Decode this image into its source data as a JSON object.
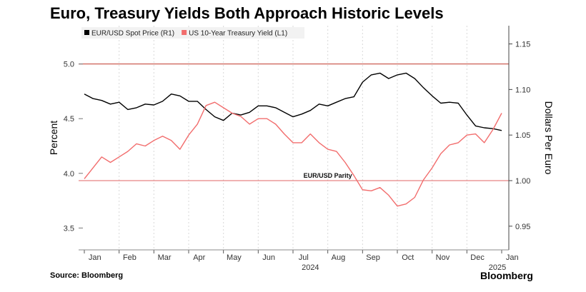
{
  "title": "Euro, Treasury Yields Both Approach Historic Levels",
  "source": "Source: Bloomberg",
  "brand": "Bloomberg",
  "colors": {
    "eur": "#000000",
    "ust": "#f26d6d",
    "ref_line": "#e06666",
    "grid": "#d9d9d9"
  },
  "chart_data": {
    "type": "line",
    "xlabel": "",
    "x_ticks": [
      "Jan",
      "Feb",
      "Mar",
      "Apr",
      "May",
      "Jun",
      "Jul",
      "Aug",
      "Sep",
      "Oct",
      "Nov",
      "Dec",
      "Jan"
    ],
    "x_year_labels": [
      "2024",
      "2025"
    ],
    "left_axis": {
      "label": "Percent",
      "min": 3.3,
      "max": 5.35,
      "ticks": [
        "3.5",
        "4.0",
        "4.5",
        "5.0"
      ]
    },
    "right_axis": {
      "label": "Dollars Per Euro",
      "min": 0.924,
      "max": 1.17,
      "ticks": [
        "0.95",
        "1.00",
        "1.05",
        "1.10",
        "1.15"
      ]
    },
    "reference_lines": [
      {
        "axis": "left",
        "value": 5.0
      },
      {
        "axis": "right",
        "value": 1.0,
        "label": "EUR/USD Parity"
      }
    ],
    "series": [
      {
        "name": "EUR/USD Spot Price (R1)",
        "axis": "right",
        "x": [
          0,
          0.25,
          0.5,
          0.75,
          1,
          1.25,
          1.5,
          1.75,
          2,
          2.25,
          2.5,
          2.75,
          3,
          3.25,
          3.5,
          3.75,
          4,
          4.25,
          4.5,
          4.75,
          5,
          5.25,
          5.5,
          5.75,
          6,
          6.25,
          6.5,
          6.75,
          7,
          7.25,
          7.5,
          7.75,
          8,
          8.25,
          8.5,
          8.75,
          9,
          9.25,
          9.5,
          9.75,
          10,
          10.25,
          10.5,
          10.75,
          11,
          11.25,
          11.5,
          11.75,
          12
        ],
        "values": [
          1.095,
          1.09,
          1.088,
          1.084,
          1.086,
          1.078,
          1.08,
          1.084,
          1.083,
          1.087,
          1.095,
          1.093,
          1.087,
          1.087,
          1.078,
          1.07,
          1.066,
          1.074,
          1.072,
          1.075,
          1.082,
          1.082,
          1.08,
          1.075,
          1.07,
          1.073,
          1.077,
          1.084,
          1.082,
          1.086,
          1.09,
          1.092,
          1.108,
          1.116,
          1.118,
          1.112,
          1.116,
          1.118,
          1.112,
          1.102,
          1.093,
          1.085,
          1.086,
          1.085,
          1.072,
          1.06,
          1.058,
          1.057,
          1.055
        ]
      },
      {
        "name": "US 10-Year Treasury Yield (L1)",
        "axis": "left",
        "x": [
          0,
          0.25,
          0.5,
          0.75,
          1,
          1.25,
          1.5,
          1.75,
          2,
          2.25,
          2.5,
          2.75,
          3,
          3.25,
          3.5,
          3.75,
          4,
          4.25,
          4.5,
          4.75,
          5,
          5.25,
          5.5,
          5.75,
          6,
          6.25,
          6.5,
          6.75,
          7,
          7.25,
          7.5,
          7.75,
          8,
          8.25,
          8.5,
          8.75,
          9,
          9.25,
          9.5,
          9.75,
          10,
          10.25,
          10.5,
          10.75,
          11,
          11.25,
          11.5,
          11.75,
          12
        ],
        "values": [
          3.95,
          4.05,
          4.15,
          4.1,
          4.15,
          4.2,
          4.27,
          4.25,
          4.3,
          4.34,
          4.3,
          4.22,
          4.35,
          4.45,
          4.62,
          4.65,
          4.6,
          4.55,
          4.52,
          4.45,
          4.5,
          4.5,
          4.45,
          4.36,
          4.28,
          4.28,
          4.36,
          4.28,
          4.22,
          4.2,
          4.1,
          3.98,
          3.85,
          3.84,
          3.87,
          3.8,
          3.7,
          3.72,
          3.78,
          3.94,
          4.05,
          4.18,
          4.26,
          4.28,
          4.35,
          4.36,
          4.28,
          4.4,
          4.55
        ]
      }
    ],
    "legend": "top-left",
    "grid": "vertical"
  }
}
